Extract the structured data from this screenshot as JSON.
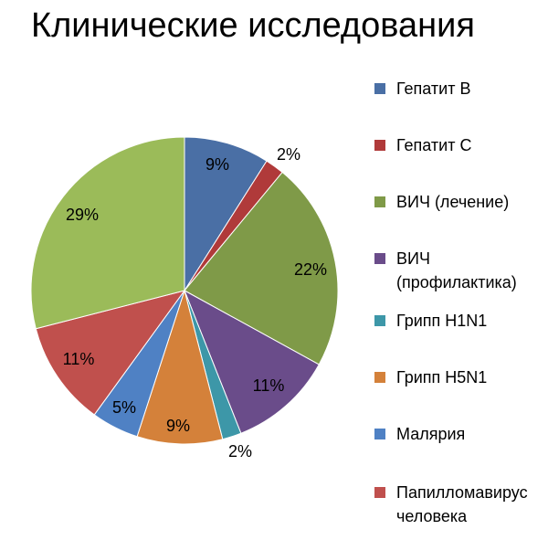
{
  "chart_data": {
    "type": "pie",
    "title": "Клинические исследования",
    "slices": [
      {
        "name": "Гепатит В",
        "value": 9,
        "label": "9%",
        "color": "#4a6fa5"
      },
      {
        "name": "Гепатит С",
        "value": 2,
        "label": "2%",
        "color": "#b03a3a"
      },
      {
        "name": "ВИЧ (лечение)",
        "value": 22,
        "label": "22%",
        "color": "#7f9a48"
      },
      {
        "name": "ВИЧ (профилактика)",
        "value": 11,
        "label": "11%",
        "color": "#6a4c8a"
      },
      {
        "name": "Грипп H1N1",
        "value": 2,
        "label": "2%",
        "color": "#3d97a8"
      },
      {
        "name": "Грипп H5N1",
        "value": 9,
        "label": "9%",
        "color": "#d4813a"
      },
      {
        "name": "Малярия",
        "value": 5,
        "label": "5%",
        "color": "#4f81c4"
      },
      {
        "name": "Папилломавирус человека",
        "value": 11,
        "label": "11%",
        "color": "#c0504d"
      },
      {
        "name": "",
        "value": 29,
        "label": "29%",
        "color": "#9bbb59"
      }
    ],
    "legend": [
      {
        "label": "Гепатит В",
        "color": "#4a6fa5"
      },
      {
        "label": "Гепатит С",
        "color": "#b03a3a"
      },
      {
        "label": "ВИЧ (лечение)",
        "color": "#7f9a48"
      },
      {
        "label": "ВИЧ\n(профилактика)",
        "color": "#6a4c8a"
      },
      {
        "label": "Грипп H1N1",
        "color": "#3d97a8"
      },
      {
        "label": "Грипп H5N1",
        "color": "#d4813a"
      },
      {
        "label": "Малярия",
        "color": "#4f81c4"
      },
      {
        "label": "Папилломавирус\nчеловека",
        "color": "#c0504d"
      }
    ],
    "legend_position": "right",
    "start_angle_deg": 0,
    "direction": "clockwise"
  }
}
